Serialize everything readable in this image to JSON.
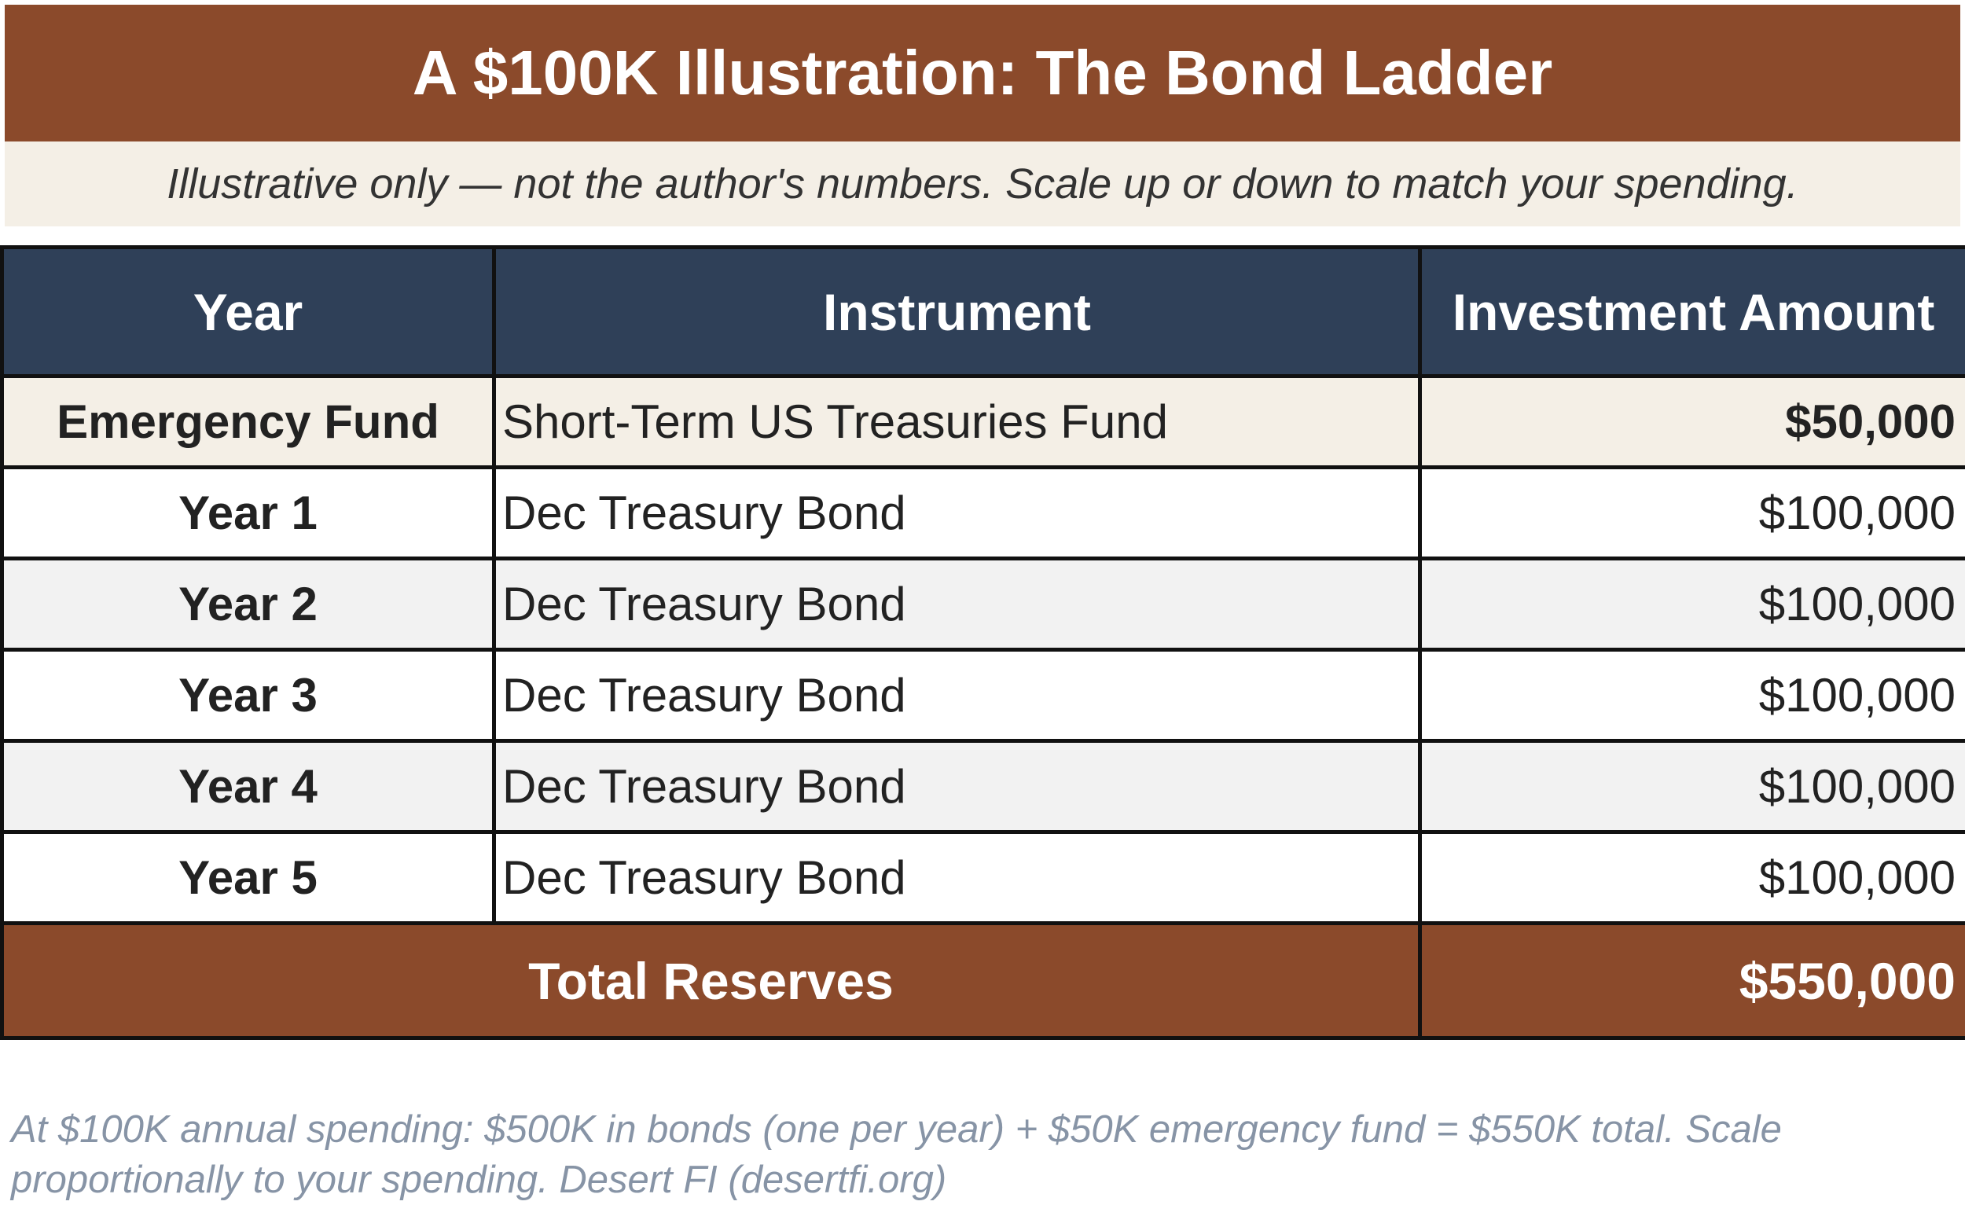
{
  "title": "A $100K Illustration: The Bond Ladder",
  "subtitle": "Illustrative only — not the author's numbers. Scale up or down to match your spending.",
  "table": {
    "headers": {
      "year": "Year",
      "instrument": "Instrument",
      "amount": "Investment Amount"
    },
    "rows": [
      {
        "year": "Emergency Fund",
        "instrument": "Short-Term US Treasuries Fund",
        "amount": "$50,000"
      },
      {
        "year": "Year 1",
        "instrument": "Dec Treasury Bond",
        "amount": "$100,000"
      },
      {
        "year": "Year 2",
        "instrument": "Dec Treasury Bond",
        "amount": "$100,000"
      },
      {
        "year": "Year 3",
        "instrument": "Dec Treasury Bond",
        "amount": "$100,000"
      },
      {
        "year": "Year 4",
        "instrument": "Dec Treasury Bond",
        "amount": "$100,000"
      },
      {
        "year": "Year 5",
        "instrument": "Dec Treasury Bond",
        "amount": "$100,000"
      }
    ],
    "total": {
      "label": "Total Reserves",
      "amount": "$550,000"
    }
  },
  "footnote": "At $100K annual spending: $500K in bonds (one per year) + $50K emergency fund = $550K total. Scale proportionally to your spending. Desert FI (desertfi.org)",
  "colors": {
    "title_bar": "#8b4a2b",
    "header_row": "#2f4058",
    "subtitle_bg": "#f4efe6",
    "footnote_text": "#8794a6"
  }
}
